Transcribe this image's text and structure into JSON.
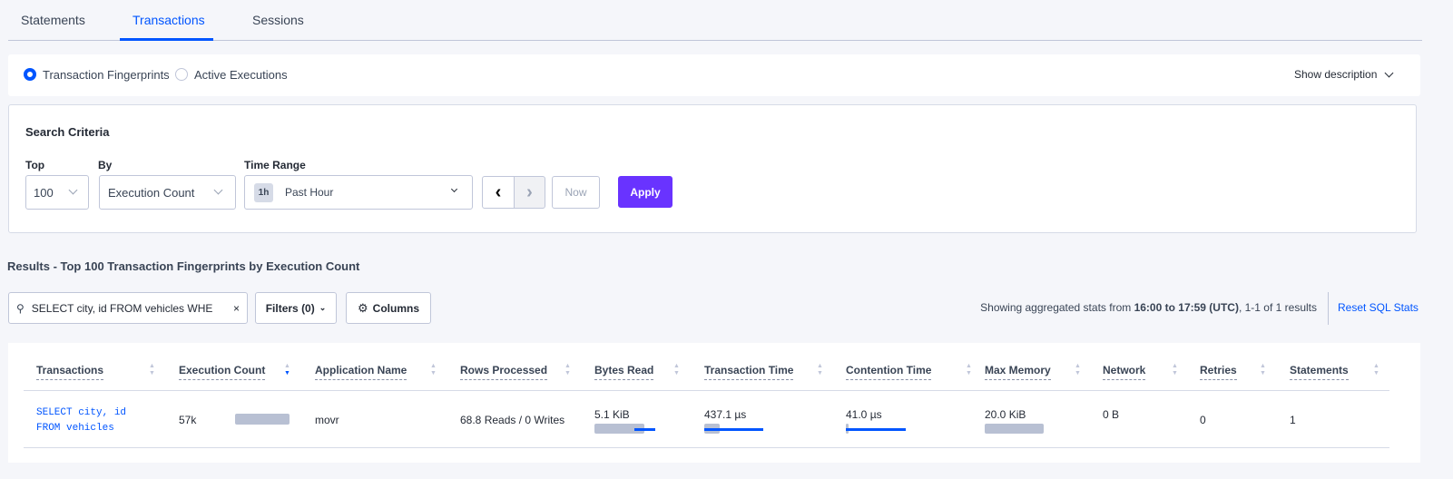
{
  "tabs": [
    {
      "label": "Statements"
    },
    {
      "label": "Transactions",
      "active": true
    },
    {
      "label": "Sessions"
    }
  ],
  "view_toggle": {
    "options": [
      "Transaction Fingerprints",
      "Active Executions"
    ],
    "selected": "Transaction Fingerprints",
    "show_description": "Show description"
  },
  "search_criteria": {
    "title": "Search Criteria",
    "top_label": "Top",
    "top_value": "100",
    "by_label": "By",
    "by_value": "Execution Count",
    "time_range_label": "Time Range",
    "time_badge": "1h",
    "time_value": "Past Hour",
    "now_label": "Now",
    "apply_label": "Apply"
  },
  "results": {
    "title": "Results - Top 100 Transaction Fingerprints by Execution Count",
    "search_value": "SELECT city, id FROM vehicles WHE",
    "filters_label": "Filters (0)",
    "columns_label": "Columns",
    "stats_prefix": "Showing aggregated stats from ",
    "stats_range": "16:00 to 17:59 (UTC)",
    "stats_suffix": ", 1-1 of 1 results",
    "reset_label": "Reset SQL Stats"
  },
  "table": {
    "columns": [
      "Transactions",
      "Execution Count",
      "Application Name",
      "Rows Processed",
      "Bytes Read",
      "Transaction Time",
      "Contention Time",
      "Max Memory",
      "Network",
      "Retries",
      "Statements"
    ],
    "sorted_column": "Execution Count",
    "rows": [
      {
        "transaction_line1": "SELECT city, id",
        "transaction_line2": "FROM vehicles",
        "execution_count": "57k",
        "application_name": "movr",
        "rows_processed": "68.8 Reads / 0 Writes",
        "bytes_read": "5.1 KiB",
        "transaction_time": "437.1 µs",
        "contention_time": "41.0 µs",
        "max_memory": "20.0 KiB",
        "network": "0 B",
        "retries": "0",
        "statements": "1"
      }
    ]
  },
  "colors": {
    "accent": "#0055ff",
    "apply": "#6933ff"
  }
}
